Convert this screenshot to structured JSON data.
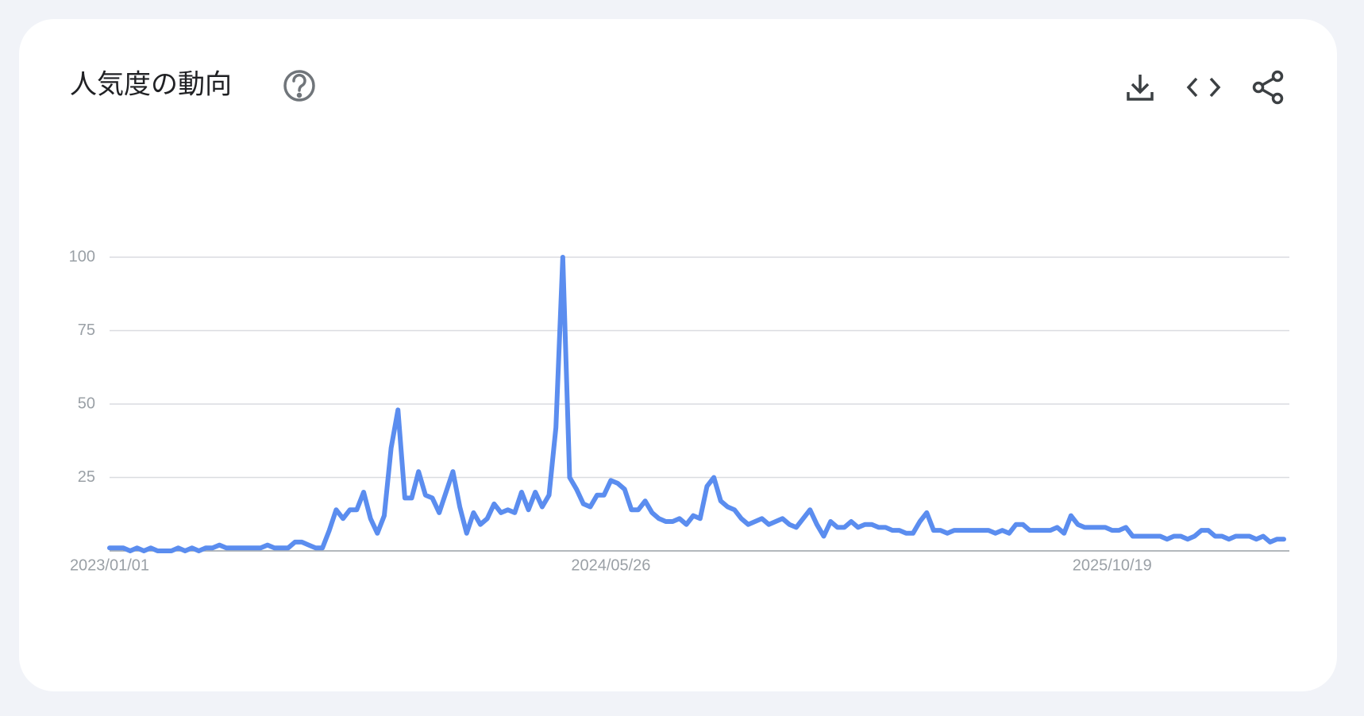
{
  "chart_data": {
    "type": "line",
    "title": "人気度の動向",
    "categories": [
      "2023/01/01",
      null,
      null,
      null,
      null,
      null,
      null,
      null,
      null,
      null,
      null,
      null,
      null,
      null,
      null,
      null,
      null,
      null,
      null,
      null,
      null,
      null,
      null,
      null,
      null,
      null,
      null,
      null,
      null,
      null,
      null,
      null,
      null,
      null,
      null,
      null,
      null,
      null,
      null,
      null,
      null,
      null,
      null,
      null,
      null,
      null,
      null,
      null,
      null,
      null,
      null,
      null,
      null,
      null,
      null,
      null,
      null,
      null,
      null,
      null,
      null,
      null,
      null,
      null,
      null,
      null,
      null,
      null,
      null,
      null,
      null,
      null,
      null,
      "2024/05/26",
      null,
      null,
      null,
      null,
      null,
      null,
      null,
      null,
      null,
      null,
      null,
      null,
      null,
      null,
      null,
      null,
      null,
      null,
      null,
      null,
      null,
      null,
      null,
      null,
      null,
      null,
      null,
      null,
      null,
      null,
      null,
      null,
      null,
      null,
      null,
      null,
      null,
      null,
      null,
      null,
      null,
      null,
      null,
      null,
      null,
      null,
      null,
      null,
      null,
      null,
      null,
      null,
      null,
      null,
      null,
      null,
      null,
      null,
      null,
      null,
      null,
      null,
      null,
      null,
      null,
      null,
      null,
      null,
      null,
      null,
      null,
      null,
      "2025/10/19",
      null,
      null,
      null,
      null,
      null,
      null,
      null,
      null,
      null,
      null,
      null,
      null,
      null,
      null,
      null,
      null,
      null,
      null,
      null,
      null,
      null,
      null,
      null,
      null,
      null
    ],
    "values": [
      1,
      1,
      1,
      0,
      1,
      0,
      1,
      0,
      0,
      0,
      1,
      0,
      1,
      0,
      1,
      1,
      2,
      1,
      1,
      1,
      1,
      1,
      1,
      2,
      1,
      1,
      1,
      3,
      3,
      2,
      1,
      1,
      7,
      14,
      11,
      14,
      14,
      20,
      11,
      6,
      12,
      35,
      48,
      18,
      18,
      27,
      19,
      18,
      13,
      20,
      27,
      15,
      6,
      13,
      9,
      11,
      16,
      13,
      14,
      13,
      20,
      14,
      20,
      15,
      19,
      42,
      100,
      25,
      21,
      16,
      15,
      19,
      19,
      24,
      23,
      21,
      14,
      14,
      17,
      13,
      11,
      10,
      10,
      11,
      9,
      12,
      11,
      22,
      25,
      17,
      15,
      14,
      11,
      9,
      10,
      11,
      9,
      10,
      11,
      9,
      8,
      11,
      14,
      9,
      5,
      10,
      8,
      8,
      10,
      8,
      9,
      9,
      8,
      8,
      7,
      7,
      6,
      6,
      10,
      13,
      7,
      7,
      6,
      7,
      7,
      7,
      7,
      7,
      7,
      6,
      7,
      6,
      9,
      9,
      7,
      7,
      7,
      7,
      8,
      6,
      12,
      9,
      8,
      8,
      8,
      8,
      7,
      7,
      8,
      5,
      5,
      5,
      5,
      5,
      4,
      5,
      5,
      4,
      5,
      7,
      7,
      5,
      5,
      4,
      5,
      5,
      5,
      4,
      5,
      3,
      4,
      4
    ],
    "color": "#5b8def",
    "ylim": [
      0,
      100
    ],
    "yticks": [
      25,
      50,
      75,
      100
    ],
    "grid": true
  }
}
